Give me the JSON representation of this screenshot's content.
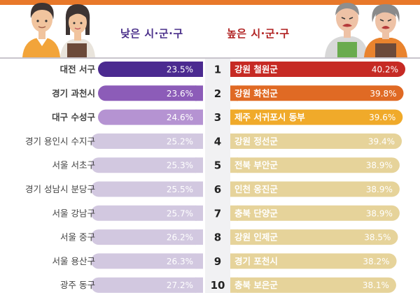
{
  "header": {
    "left_title": "낮은 시·군·구",
    "right_title": "높은 시·군·구"
  },
  "chart_data": {
    "type": "bar",
    "ranks": [
      "1",
      "2",
      "3",
      "4",
      "5",
      "6",
      "7",
      "8",
      "9",
      "10"
    ],
    "series": [
      {
        "name": "낮은 시·군·구",
        "categories": [
          "대전 서구",
          "경기 과천시",
          "대구 수성구",
          "경기 용인시 수지구",
          "서울 서초구",
          "경기 성남시 분당구",
          "서울 강남구",
          "서울 중구",
          "서울 용산구",
          "광주 동구"
        ],
        "values": [
          23.5,
          23.6,
          24.6,
          25.2,
          25.3,
          25.5,
          25.7,
          26.2,
          26.3,
          27.2
        ],
        "value_labels": [
          "23.5%",
          "23.6%",
          "24.6%",
          "25.2%",
          "25.3%",
          "25.5%",
          "25.7%",
          "26.2%",
          "26.3%",
          "27.2%"
        ],
        "colors": [
          "#4b2a90",
          "#8c5cb8",
          "#b593d2",
          "#d2c8e0",
          "#d2c8e0",
          "#d2c8e0",
          "#d2c8e0",
          "#d2c8e0",
          "#d2c8e0",
          "#d2c8e0"
        ]
      },
      {
        "name": "높은 시·군·구",
        "categories": [
          "강원 철원군",
          "강원 화천군",
          "제주 서귀포시 동부",
          "강원 정선군",
          "전북 부안군",
          "인천 옹진군",
          "충북 단양군",
          "강원 인제군",
          "경기 포천시",
          "충북 보은군"
        ],
        "values": [
          40.2,
          39.8,
          39.6,
          39.4,
          38.9,
          38.9,
          38.9,
          38.5,
          38.2,
          38.1
        ],
        "value_labels": [
          "40.2%",
          "39.8%",
          "39.6%",
          "39.4%",
          "38.9%",
          "38.9%",
          "38.9%",
          "38.5%",
          "38.2%",
          "38.1%"
        ],
        "colors": [
          "#c62a24",
          "#e06a24",
          "#f0aa2a",
          "#e6d39a",
          "#e6d39a",
          "#e6d39a",
          "#e6d39a",
          "#e6d39a",
          "#e6d39a",
          "#e6d39a"
        ]
      }
    ]
  }
}
